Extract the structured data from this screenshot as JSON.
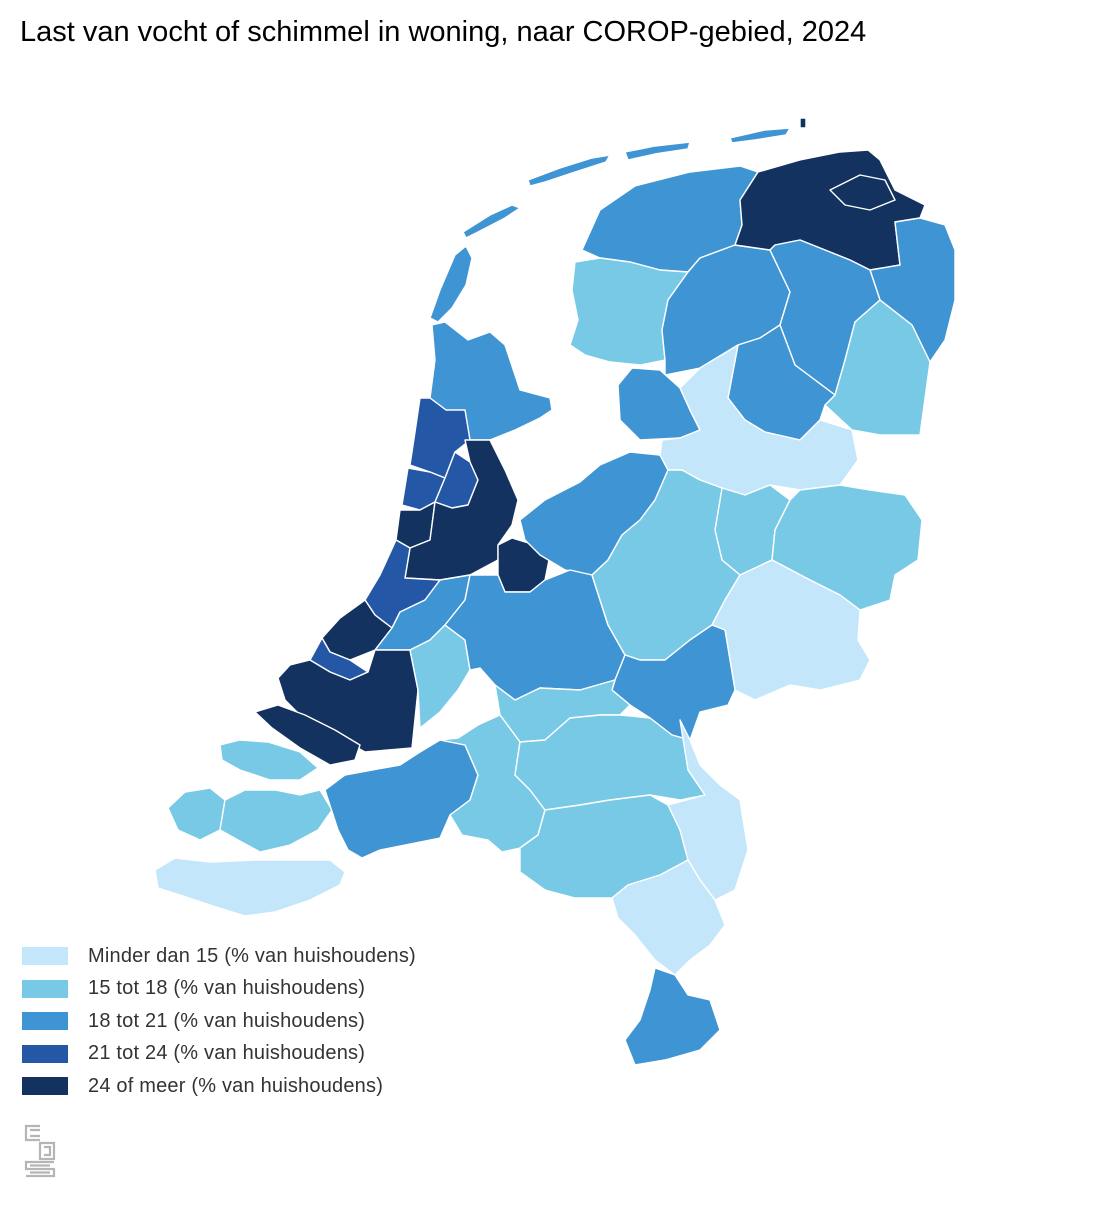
{
  "title": "Last van vocht of schimmel in woning, naar COROP-gebied, 2024",
  "colors": {
    "c1": "#c3e6fa",
    "c2": "#77c9e5",
    "c3": "#3f94d3",
    "c4": "#2457a6",
    "c5": "#14325f"
  },
  "legend": [
    {
      "label": "Minder dan 15 (% van huishoudens)",
      "color": "#c3e6fa"
    },
    {
      "label": "15 tot 18 (% van huishoudens)",
      "color": "#77c9e5"
    },
    {
      "label": "18 tot 21 (% van huishoudens)",
      "color": "#3f94d3"
    },
    {
      "label": "21 tot 24 (% van huishoudens)",
      "color": "#2457a6"
    },
    {
      "label": "24 of meer (% van huishoudens)",
      "color": "#14325f"
    }
  ],
  "logo": "cbs-logo-icon"
}
